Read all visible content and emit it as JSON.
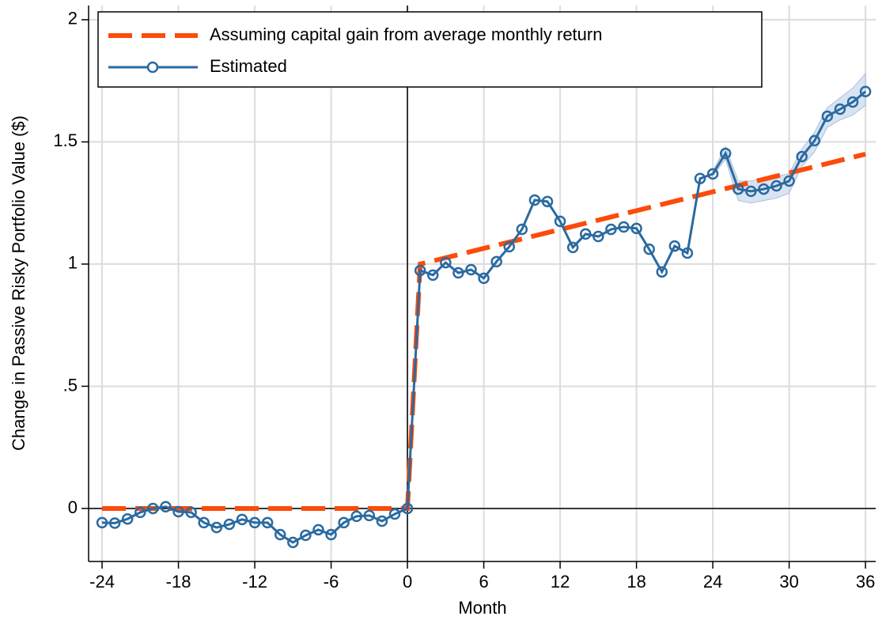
{
  "chart_data": {
    "type": "line",
    "x_label": "Month",
    "y_label": "Change in Passive Risky Portfolio Value ($)",
    "xlim": [
      -25.06,
      36.8
    ],
    "ylim": [
      -0.217,
      2.058
    ],
    "xticks": [
      -24,
      -18,
      -12,
      -6,
      0,
      6,
      12,
      18,
      24,
      30,
      36
    ],
    "yticks": [
      0,
      {
        "value": 0.5,
        "label": ".5"
      },
      1,
      1.5,
      2
    ],
    "grid": true,
    "legend": "upper left",
    "series": [
      {
        "name": "Assuming capital gain from average monthly return",
        "color": "#fc4b0a",
        "style": "dashed",
        "x": [
          -24,
          0,
          1,
          36
        ],
        "values": [
          0,
          0,
          1.0,
          1.45
        ]
      },
      {
        "name": "Estimated",
        "color": "#2a6aa0",
        "style": "solid-circle",
        "x": [
          -24,
          -23,
          -22,
          -21,
          -20,
          -19,
          -18,
          -17,
          -16,
          -15,
          -14,
          -13,
          -12,
          -11,
          -10,
          -9,
          -8,
          -7,
          -6,
          -5,
          -4,
          -3,
          -2,
          -1,
          0,
          1,
          2,
          3,
          4,
          5,
          6,
          7,
          8,
          9,
          10,
          11,
          12,
          13,
          14,
          15,
          16,
          17,
          18,
          19,
          20,
          21,
          22,
          23,
          24,
          25,
          26,
          27,
          28,
          29,
          30,
          31,
          32,
          33,
          34,
          35,
          36
        ],
        "values": [
          -0.058,
          -0.06,
          -0.043,
          -0.016,
          0,
          0.007,
          -0.013,
          -0.016,
          -0.058,
          -0.078,
          -0.065,
          -0.045,
          -0.058,
          -0.058,
          -0.107,
          -0.139,
          -0.11,
          -0.087,
          -0.107,
          -0.058,
          -0.032,
          -0.029,
          -0.052,
          -0.023,
          0,
          0.974,
          0.955,
          1.006,
          0.964,
          0.977,
          0.942,
          1.01,
          1.071,
          1.142,
          1.262,
          1.256,
          1.175,
          1.068,
          1.123,
          1.113,
          1.142,
          1.152,
          1.146,
          1.061,
          0.968,
          1.074,
          1.045,
          1.35,
          1.369,
          1.453,
          1.307,
          1.298,
          1.307,
          1.32,
          1.34,
          1.44,
          1.505,
          1.605,
          1.634,
          1.663,
          1.706
        ]
      }
    ],
    "band": {
      "color": "#c9d9ec",
      "x": [
        24,
        25,
        26,
        27,
        28,
        29,
        30,
        31,
        32,
        33,
        34,
        35,
        36
      ],
      "lower": [
        1.36,
        1.43,
        1.26,
        1.25,
        1.26,
        1.27,
        1.29,
        1.4,
        1.46,
        1.56,
        1.59,
        1.61,
        1.65
      ],
      "upper": [
        1.38,
        1.48,
        1.34,
        1.34,
        1.35,
        1.36,
        1.37,
        1.47,
        1.54,
        1.64,
        1.68,
        1.72,
        1.78
      ]
    }
  }
}
